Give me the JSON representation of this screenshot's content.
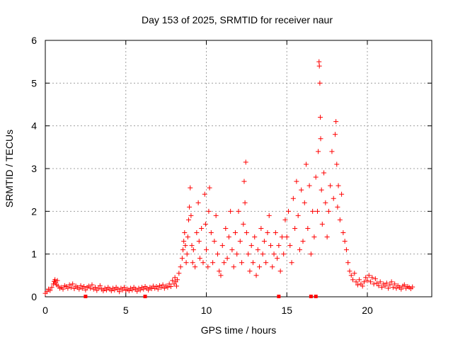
{
  "chart_data": {
    "type": "scatter",
    "title": "Day 153 of 2025, SRMTID for receiver naur",
    "xlabel": "GPS time / hours",
    "ylabel": "SRMTID / TECUs",
    "xlim": [
      0,
      24
    ],
    "ylim": [
      0,
      6
    ],
    "xticks": [
      0,
      5,
      10,
      15,
      20
    ],
    "yticks": [
      0,
      1,
      2,
      3,
      4,
      5,
      6
    ],
    "xtick_labels": [
      "0",
      "5",
      "10",
      "15",
      "20"
    ],
    "ytick_labels": [
      "0",
      "1",
      "2",
      "3",
      "4",
      "5",
      "6"
    ],
    "grid": true,
    "marker": "+",
    "color": "#ff0000",
    "series": [
      {
        "name": "SRMTID",
        "points": [
          [
            0.0,
            0.08
          ],
          [
            0.1,
            0.12
          ],
          [
            0.2,
            0.18
          ],
          [
            0.3,
            0.15
          ],
          [
            0.4,
            0.22
          ],
          [
            0.5,
            0.3
          ],
          [
            0.55,
            0.36
          ],
          [
            0.6,
            0.4
          ],
          [
            0.65,
            0.33
          ],
          [
            0.7,
            0.28
          ],
          [
            0.75,
            0.38
          ],
          [
            0.8,
            0.25
          ],
          [
            0.9,
            0.2
          ],
          [
            1.0,
            0.22
          ],
          [
            1.1,
            0.18
          ],
          [
            1.2,
            0.26
          ],
          [
            1.3,
            0.24
          ],
          [
            1.4,
            0.2
          ],
          [
            1.5,
            0.28
          ],
          [
            1.6,
            0.22
          ],
          [
            1.7,
            0.3
          ],
          [
            1.8,
            0.19
          ],
          [
            1.9,
            0.25
          ],
          [
            2.0,
            0.22
          ],
          [
            2.1,
            0.18
          ],
          [
            2.2,
            0.26
          ],
          [
            2.3,
            0.2
          ],
          [
            2.4,
            0.24
          ],
          [
            2.5,
            0.16
          ],
          [
            2.6,
            0.22
          ],
          [
            2.7,
            0.25
          ],
          [
            2.8,
            0.2
          ],
          [
            2.9,
            0.28
          ],
          [
            3.0,
            0.18
          ],
          [
            3.1,
            0.22
          ],
          [
            3.2,
            0.15
          ],
          [
            3.3,
            0.2
          ],
          [
            3.4,
            0.26
          ],
          [
            3.5,
            0.18
          ],
          [
            3.6,
            0.14
          ],
          [
            3.7,
            0.2
          ],
          [
            3.8,
            0.16
          ],
          [
            3.9,
            0.22
          ],
          [
            4.0,
            0.18
          ],
          [
            4.1,
            0.14
          ],
          [
            4.2,
            0.2
          ],
          [
            4.3,
            0.16
          ],
          [
            4.4,
            0.22
          ],
          [
            4.5,
            0.18
          ],
          [
            4.6,
            0.12
          ],
          [
            4.7,
            0.2
          ],
          [
            4.8,
            0.16
          ],
          [
            4.9,
            0.22
          ],
          [
            5.0,
            0.15
          ],
          [
            5.1,
            0.18
          ],
          [
            5.2,
            0.14
          ],
          [
            5.3,
            0.2
          ],
          [
            5.4,
            0.16
          ],
          [
            5.5,
            0.22
          ],
          [
            5.6,
            0.18
          ],
          [
            5.7,
            0.13
          ],
          [
            5.8,
            0.2
          ],
          [
            5.9,
            0.16
          ],
          [
            6.0,
            0.22
          ],
          [
            6.1,
            0.18
          ],
          [
            6.2,
            0.24
          ],
          [
            6.3,
            0.2
          ],
          [
            6.4,
            0.16
          ],
          [
            6.5,
            0.22
          ],
          [
            6.6,
            0.19
          ],
          [
            6.7,
            0.25
          ],
          [
            6.8,
            0.2
          ],
          [
            6.9,
            0.24
          ],
          [
            7.0,
            0.18
          ],
          [
            7.1,
            0.26
          ],
          [
            7.2,
            0.22
          ],
          [
            7.3,
            0.28
          ],
          [
            7.4,
            0.2
          ],
          [
            7.5,
            0.25
          ],
          [
            7.6,
            0.22
          ],
          [
            7.7,
            0.3
          ],
          [
            7.8,
            0.24
          ],
          [
            7.9,
            0.38
          ],
          [
            8.0,
            0.3
          ],
          [
            8.05,
            0.45
          ],
          [
            8.1,
            0.35
          ],
          [
            8.15,
            0.25
          ],
          [
            8.2,
            0.4
          ],
          [
            8.3,
            0.55
          ],
          [
            8.4,
            0.7
          ],
          [
            8.5,
            0.9
          ],
          [
            8.55,
            1.1
          ],
          [
            8.6,
            1.3
          ],
          [
            8.65,
            1.5
          ],
          [
            8.7,
            1.2
          ],
          [
            8.75,
            0.8
          ],
          [
            8.8,
            1.0
          ],
          [
            8.85,
            1.4
          ],
          [
            8.9,
            1.8
          ],
          [
            8.95,
            2.1
          ],
          [
            9.0,
            2.55
          ],
          [
            9.05,
            1.9
          ],
          [
            9.1,
            1.2
          ],
          [
            9.15,
            0.8
          ],
          [
            9.2,
            1.1
          ],
          [
            9.3,
            0.7
          ],
          [
            9.4,
            1.5
          ],
          [
            9.5,
            2.2
          ],
          [
            9.55,
            1.3
          ],
          [
            9.6,
            0.9
          ],
          [
            9.7,
            1.6
          ],
          [
            9.8,
            0.8
          ],
          [
            9.9,
            2.4
          ],
          [
            9.95,
            1.7
          ],
          [
            10.0,
            1.1
          ],
          [
            10.1,
            0.7
          ],
          [
            10.15,
            2.0
          ],
          [
            10.2,
            2.55
          ],
          [
            10.3,
            1.5
          ],
          [
            10.4,
            0.8
          ],
          [
            10.5,
            1.3
          ],
          [
            10.6,
            1.9
          ],
          [
            10.7,
            1.0
          ],
          [
            10.8,
            0.6
          ],
          [
            10.9,
            0.5
          ],
          [
            11.0,
            1.2
          ],
          [
            11.1,
            0.8
          ],
          [
            11.2,
            1.6
          ],
          [
            11.3,
            0.9
          ],
          [
            11.4,
            1.4
          ],
          [
            11.5,
            2.0
          ],
          [
            11.6,
            1.1
          ],
          [
            11.7,
            0.7
          ],
          [
            11.8,
            1.5
          ],
          [
            11.9,
            1.0
          ],
          [
            12.0,
            2.0
          ],
          [
            12.1,
            1.3
          ],
          [
            12.2,
            0.8
          ],
          [
            12.3,
            1.7
          ],
          [
            12.35,
            2.7
          ],
          [
            12.4,
            2.2
          ],
          [
            12.45,
            3.15
          ],
          [
            12.5,
            1.5
          ],
          [
            12.6,
            1.0
          ],
          [
            12.7,
            0.6
          ],
          [
            12.8,
            1.2
          ],
          [
            12.9,
            0.8
          ],
          [
            13.0,
            1.4
          ],
          [
            13.1,
            0.5
          ],
          [
            13.2,
            1.1
          ],
          [
            13.3,
            0.7
          ],
          [
            13.4,
            1.6
          ],
          [
            13.5,
            1.0
          ],
          [
            13.6,
            1.3
          ],
          [
            13.7,
            0.8
          ],
          [
            13.8,
            1.5
          ],
          [
            13.9,
            1.9
          ],
          [
            14.0,
            1.2
          ],
          [
            14.1,
            0.7
          ],
          [
            14.2,
            1.0
          ],
          [
            14.3,
            1.5
          ],
          [
            14.4,
            0.9
          ],
          [
            14.5,
            1.2
          ],
          [
            14.6,
            0.6
          ],
          [
            14.7,
            1.4
          ],
          [
            14.8,
            1.0
          ],
          [
            14.9,
            1.8
          ],
          [
            15.0,
            1.4
          ],
          [
            15.1,
            2.0
          ],
          [
            15.2,
            1.2
          ],
          [
            15.3,
            0.8
          ],
          [
            15.4,
            2.3
          ],
          [
            15.5,
            1.6
          ],
          [
            15.6,
            2.7
          ],
          [
            15.7,
            1.9
          ],
          [
            15.8,
            1.1
          ],
          [
            15.9,
            2.5
          ],
          [
            16.0,
            1.3
          ],
          [
            16.1,
            2.2
          ],
          [
            16.2,
            3.1
          ],
          [
            16.3,
            1.6
          ],
          [
            16.4,
            2.6
          ],
          [
            16.5,
            1.0
          ],
          [
            16.6,
            2.0
          ],
          [
            16.7,
            1.4
          ],
          [
            16.8,
            2.8
          ],
          [
            16.9,
            2.0
          ],
          [
            16.95,
            3.4
          ],
          [
            17.0,
            5.5
          ],
          [
            17.02,
            5.4
          ],
          [
            17.05,
            5.0
          ],
          [
            17.08,
            4.2
          ],
          [
            17.1,
            3.7
          ],
          [
            17.15,
            2.5
          ],
          [
            17.2,
            1.7
          ],
          [
            17.3,
            2.9
          ],
          [
            17.4,
            2.2
          ],
          [
            17.5,
            1.4
          ],
          [
            17.6,
            2.0
          ],
          [
            17.7,
            2.6
          ],
          [
            17.8,
            3.4
          ],
          [
            17.9,
            2.3
          ],
          [
            18.0,
            3.8
          ],
          [
            18.05,
            4.1
          ],
          [
            18.1,
            3.1
          ],
          [
            18.15,
            2.1
          ],
          [
            18.2,
            2.6
          ],
          [
            18.3,
            1.8
          ],
          [
            18.4,
            2.4
          ],
          [
            18.5,
            1.5
          ],
          [
            18.6,
            1.3
          ],
          [
            18.7,
            1.1
          ],
          [
            18.8,
            0.8
          ],
          [
            18.9,
            0.6
          ],
          [
            19.0,
            0.5
          ],
          [
            19.1,
            0.4
          ],
          [
            19.2,
            0.55
          ],
          [
            19.3,
            0.35
          ],
          [
            19.4,
            0.28
          ],
          [
            19.5,
            0.4
          ],
          [
            19.6,
            0.3
          ],
          [
            19.7,
            0.25
          ],
          [
            19.8,
            0.35
          ],
          [
            19.9,
            0.45
          ],
          [
            20.0,
            0.38
          ],
          [
            20.1,
            0.5
          ],
          [
            20.2,
            0.35
          ],
          [
            20.3,
            0.45
          ],
          [
            20.4,
            0.3
          ],
          [
            20.5,
            0.42
          ],
          [
            20.6,
            0.32
          ],
          [
            20.7,
            0.26
          ],
          [
            20.8,
            0.35
          ],
          [
            20.9,
            0.22
          ],
          [
            21.0,
            0.3
          ],
          [
            21.1,
            0.25
          ],
          [
            21.2,
            0.32
          ],
          [
            21.3,
            0.2
          ],
          [
            21.4,
            0.28
          ],
          [
            21.5,
            0.35
          ],
          [
            21.6,
            0.22
          ],
          [
            21.7,
            0.3
          ],
          [
            21.8,
            0.2
          ],
          [
            21.9,
            0.26
          ],
          [
            22.0,
            0.22
          ],
          [
            22.1,
            0.18
          ],
          [
            22.2,
            0.25
          ],
          [
            22.3,
            0.28
          ],
          [
            22.4,
            0.2
          ],
          [
            22.5,
            0.24
          ],
          [
            22.6,
            0.22
          ],
          [
            22.7,
            0.19
          ],
          [
            22.8,
            0.23
          ]
        ]
      }
    ],
    "floor_points": [
      2.5,
      6.2,
      14.5,
      16.5,
      16.8
    ]
  }
}
